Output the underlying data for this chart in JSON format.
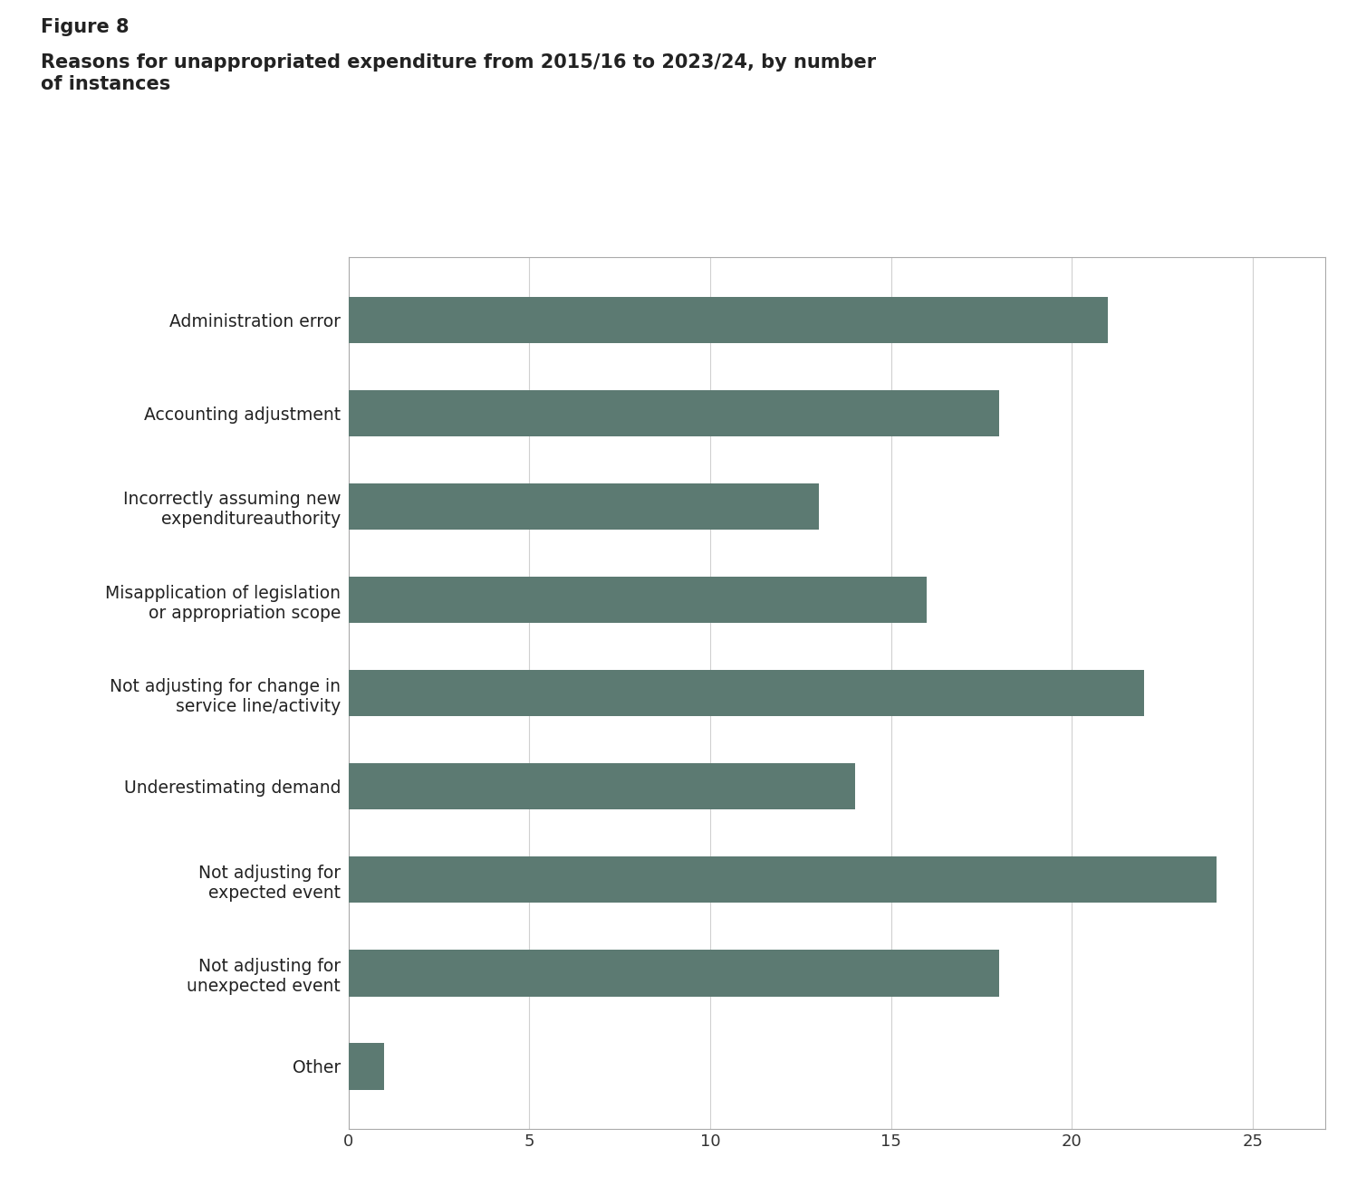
{
  "title_line1": "Figure 8",
  "title_line2": "Reasons for unappropriated expenditure from 2015/16 to 2023/24, by number\nof instances",
  "y_labels": [
    "Administration error",
    "Accounting adjustment",
    "Incorrectly assuming new\nexpenditureauthority",
    "Misapplication of legislation\nor appropriation scope",
    "Not adjusting for change in\nservice line/activity",
    "Underestimating demand",
    "Not adjusting for\nexpected event",
    "Not adjusting for\nunexpected event",
    "Other"
  ],
  "y_labels_display": [
    "Administration error",
    "Accounting adjustment",
    "Incorrectly assuming new\nexpenditureauthority",
    "Misapplication of legislation\nor appropriation scope",
    "Not adjusting for change in\nservice line/activity",
    "Underestimating demand",
    "Not adjusting for\nexpected event",
    "Not adjusting for\nunexpected event",
    "Other"
  ],
  "values": [
    21,
    18,
    13,
    16,
    22,
    14,
    24,
    18,
    1
  ],
  "bar_color": "#5c7a72",
  "background_color": "#ffffff",
  "xlim": [
    0,
    27
  ],
  "xticks": [
    0,
    5,
    10,
    15,
    20,
    25
  ],
  "grid_color": "#d0d0d0",
  "border_color": "#aaaaaa",
  "title1_fontsize": 15,
  "title2_fontsize": 15,
  "label_fontsize": 13.5,
  "tick_fontsize": 13
}
